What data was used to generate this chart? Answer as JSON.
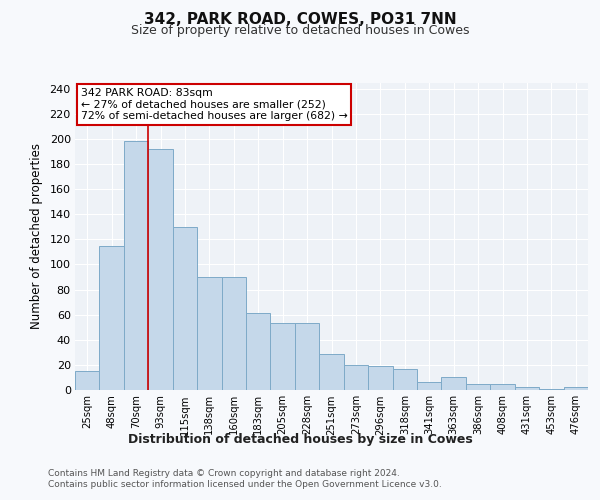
{
  "title1": "342, PARK ROAD, COWES, PO31 7NN",
  "title2": "Size of property relative to detached houses in Cowes",
  "xlabel": "Distribution of detached houses by size in Cowes",
  "ylabel": "Number of detached properties",
  "categories": [
    "25sqm",
    "48sqm",
    "70sqm",
    "93sqm",
    "115sqm",
    "138sqm",
    "160sqm",
    "183sqm",
    "205sqm",
    "228sqm",
    "251sqm",
    "273sqm",
    "296sqm",
    "318sqm",
    "341sqm",
    "363sqm",
    "386sqm",
    "408sqm",
    "431sqm",
    "453sqm",
    "476sqm"
  ],
  "values": [
    15,
    115,
    198,
    192,
    130,
    90,
    90,
    61,
    53,
    53,
    29,
    20,
    19,
    17,
    6,
    10,
    5,
    5,
    2,
    1,
    2
  ],
  "bar_color": "#c5d8ea",
  "bar_edge_color": "#7eaac8",
  "vline_x": 2.5,
  "vline_color": "#cc0000",
  "annotation_text": "342 PARK ROAD: 83sqm\n← 27% of detached houses are smaller (252)\n72% of semi-detached houses are larger (682) →",
  "annotation_box_color": "#ffffff",
  "annotation_box_edge": "#cc0000",
  "footer1": "Contains HM Land Registry data © Crown copyright and database right 2024.",
  "footer2": "Contains public sector information licensed under the Open Government Licence v3.0.",
  "bg_color": "#eef2f7",
  "grid_color": "#ffffff",
  "ylim": [
    0,
    245
  ],
  "yticks": [
    0,
    20,
    40,
    60,
    80,
    100,
    120,
    140,
    160,
    180,
    200,
    220,
    240
  ],
  "fig_bg": "#f7f9fc"
}
